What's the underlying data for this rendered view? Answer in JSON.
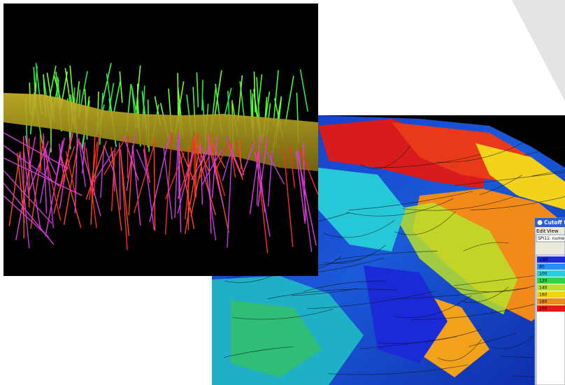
{
  "window": {
    "title": "Cutoff f",
    "menu": [
      "Edit",
      "View"
    ],
    "field": "SPI11: nume",
    "legend": [
      {
        "label": "<80",
        "color": "#1a2ad6"
      },
      {
        "label": "80",
        "color": "#2f8cf0"
      },
      {
        "label": "100",
        "color": "#26d0d8"
      },
      {
        "label": "120",
        "color": "#34d04a"
      },
      {
        "label": "140",
        "color": "#b8e02a"
      },
      {
        "label": "160",
        "color": "#f2d21a"
      },
      {
        "label": "180",
        "color": "#f28a1a"
      },
      {
        "label": "200",
        "color": "#e41a1a"
      }
    ]
  }
}
